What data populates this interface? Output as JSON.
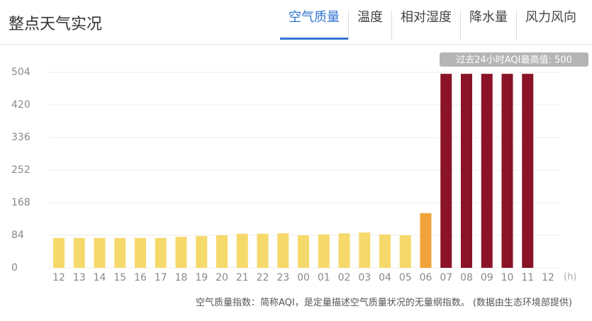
{
  "header": {
    "title": "整点天气实况",
    "tabs": [
      "空气质量",
      "温度",
      "相对湿度",
      "降水量",
      "风力风向"
    ],
    "active_tab": 0
  },
  "chart_data": {
    "type": "bar",
    "annotation": "过去24小时AQI最高值: 500",
    "x_label": "(h)",
    "categories": [
      "12",
      "13",
      "14",
      "15",
      "16",
      "17",
      "18",
      "19",
      "20",
      "21",
      "22",
      "23",
      "00",
      "01",
      "02",
      "03",
      "04",
      "05",
      "06",
      "07",
      "08",
      "09",
      "10",
      "11",
      "12"
    ],
    "values": [
      77,
      77,
      77,
      77,
      77,
      77,
      80,
      82,
      84,
      88,
      88,
      89,
      84,
      86,
      89,
      91,
      86,
      84,
      141,
      500,
      500,
      500,
      500,
      500,
      null
    ],
    "colors": [
      "#f6d96b",
      "#f6d96b",
      "#f6d96b",
      "#f6d96b",
      "#f6d96b",
      "#f6d96b",
      "#f6d96b",
      "#f6d96b",
      "#f6d96b",
      "#f6d96b",
      "#f6d96b",
      "#f6d96b",
      "#f6d96b",
      "#f6d96b",
      "#f6d96b",
      "#f6d96b",
      "#f6d96b",
      "#f6d96b",
      "#f0a33b",
      "#8a1328",
      "#8a1328",
      "#8a1328",
      "#8a1328",
      "#8a1328",
      null
    ],
    "ylim": [
      0,
      504
    ],
    "yticks": [
      0,
      84,
      168,
      252,
      336,
      420,
      504
    ],
    "grid": true,
    "footnote": "空气质量指数：简称AQI，是定量描述空气质量状况的无量纲指数。 (数据由生态环境部提供)"
  }
}
